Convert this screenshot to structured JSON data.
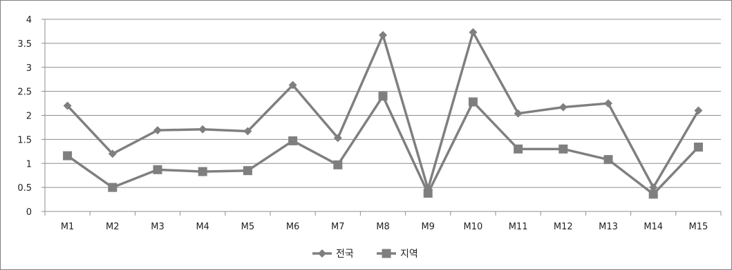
{
  "chart_data": {
    "type": "line",
    "categories": [
      "M1",
      "M2",
      "M3",
      "M4",
      "M5",
      "M6",
      "M7",
      "M8",
      "M9",
      "M10",
      "M11",
      "M12",
      "M13",
      "M14",
      "M15"
    ],
    "series": [
      {
        "name": "전국",
        "marker": "diamond",
        "color": "#7f7f7f",
        "values": [
          2.2,
          1.2,
          1.69,
          1.71,
          1.67,
          2.63,
          1.53,
          3.67,
          0.47,
          3.73,
          2.04,
          2.17,
          2.25,
          0.5,
          2.1
        ]
      },
      {
        "name": "지역",
        "marker": "square",
        "color": "#7f7f7f",
        "values": [
          1.16,
          0.5,
          0.87,
          0.83,
          0.85,
          1.47,
          0.97,
          2.4,
          0.38,
          2.28,
          1.3,
          1.3,
          1.08,
          0.36,
          1.34
        ]
      }
    ],
    "y_ticks": [
      "0",
      "0.5",
      "1",
      "1.5",
      "2",
      "2.5",
      "3",
      "3.5",
      "4"
    ],
    "ylim": [
      0,
      4
    ],
    "grid": true,
    "legend_position": "bottom",
    "title": "",
    "xlabel": "",
    "ylabel": ""
  }
}
